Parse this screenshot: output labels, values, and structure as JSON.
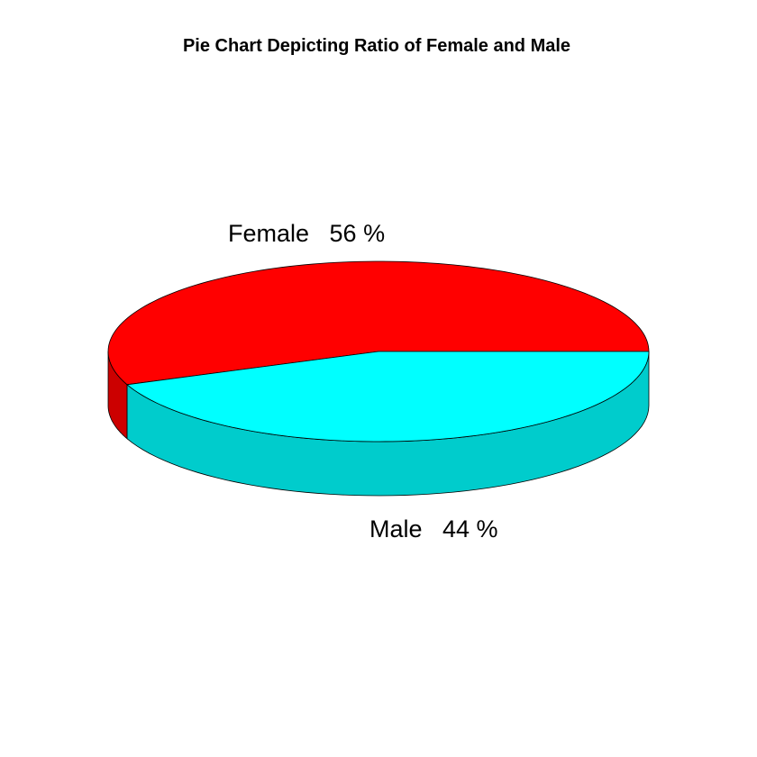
{
  "chart_data": {
    "type": "pie",
    "title": "Pie Chart Depicting Ratio of Female and Male",
    "style": "3d",
    "slices": [
      {
        "name": "Female",
        "value": 56,
        "label": "Female   56 %",
        "color": "#ff0000",
        "side_color": "#cc0000"
      },
      {
        "name": "Male",
        "value": 44,
        "label": "Male   44 %",
        "color": "#00ffff",
        "side_color": "#00cccc"
      }
    ]
  }
}
